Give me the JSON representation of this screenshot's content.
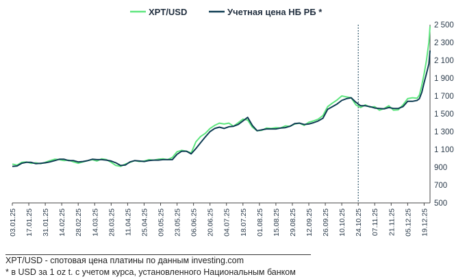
{
  "chart_data": {
    "type": "line",
    "legend": [
      "XPT/USD",
      "Учетная цена НБ РБ *"
    ],
    "legend_position": "top-center",
    "ylim": [
      500,
      2500
    ],
    "yticks": [
      500,
      700,
      900,
      1100,
      1300,
      1500,
      1700,
      1900,
      2100,
      2300,
      2500
    ],
    "ytick_labels": [
      "500",
      "700",
      "900",
      "1 100",
      "1 300",
      "1 500",
      "1 700",
      "1 900",
      "2 100",
      "2 300",
      "2 500"
    ],
    "xlim_days": [
      0,
      355
    ],
    "xticks": [
      {
        "label": "03.01.25",
        "day": 0
      },
      {
        "label": "17.01.25",
        "day": 14
      },
      {
        "label": "31.01.25",
        "day": 28
      },
      {
        "label": "14.02.25",
        "day": 42
      },
      {
        "label": "28.02.25",
        "day": 56
      },
      {
        "label": "14.03.25",
        "day": 70
      },
      {
        "label": "28.03.25",
        "day": 84
      },
      {
        "label": "11.04.25",
        "day": 98
      },
      {
        "label": "25.04.25",
        "day": 112
      },
      {
        "label": "09.05.25",
        "day": 126
      },
      {
        "label": "23.05.25",
        "day": 140
      },
      {
        "label": "06.06.25",
        "day": 154
      },
      {
        "label": "20.06.25",
        "day": 168
      },
      {
        "label": "04.07.25",
        "day": 182
      },
      {
        "label": "18.07.25",
        "day": 196
      },
      {
        "label": "01.08.25",
        "day": 210
      },
      {
        "label": "15.08.25",
        "day": 224
      },
      {
        "label": "29.08.25",
        "day": 238
      },
      {
        "label": "12.09.25",
        "day": 252
      },
      {
        "label": "26.09.25",
        "day": 266
      },
      {
        "label": "10.10.25",
        "day": 280
      },
      {
        "label": "24.10.25",
        "day": 294
      },
      {
        "label": "07.11.25",
        "day": 308
      },
      {
        "label": "21.11.25",
        "day": 322
      },
      {
        "label": "05.12.25",
        "day": 336
      },
      {
        "label": "19.12.25",
        "day": 350
      }
    ],
    "vline_day": 294,
    "series": [
      {
        "name": "XPT/USD",
        "color": "#5de67e",
        "x": [
          0,
          4,
          8,
          12,
          16,
          20,
          24,
          28,
          32,
          36,
          40,
          44,
          48,
          52,
          56,
          60,
          64,
          68,
          72,
          76,
          80,
          84,
          88,
          92,
          96,
          100,
          104,
          108,
          112,
          116,
          120,
          124,
          128,
          132,
          136,
          140,
          144,
          148,
          152,
          156,
          160,
          164,
          168,
          172,
          176,
          180,
          184,
          188,
          192,
          196,
          200,
          204,
          208,
          212,
          216,
          220,
          224,
          228,
          232,
          236,
          240,
          244,
          248,
          252,
          256,
          260,
          264,
          268,
          272,
          276,
          280,
          284,
          288,
          292,
          296,
          300,
          304,
          308,
          312,
          316,
          320,
          324,
          328,
          332,
          336,
          340,
          344,
          346,
          348,
          350,
          352,
          354,
          355
        ],
        "y": [
          935,
          925,
          955,
          960,
          945,
          950,
          940,
          955,
          975,
          990,
          985,
          975,
          980,
          960,
          945,
          960,
          975,
          985,
          970,
          995,
          985,
          955,
          920,
          910,
          935,
          955,
          975,
          965,
          970,
          985,
          980,
          990,
          995,
          985,
          1010,
          1075,
          1090,
          1080,
          1060,
          1185,
          1245,
          1280,
          1335,
          1370,
          1395,
          1385,
          1395,
          1360,
          1400,
          1440,
          1430,
          1350,
          1310,
          1315,
          1340,
          1335,
          1345,
          1340,
          1365,
          1360,
          1385,
          1395,
          1370,
          1405,
          1420,
          1440,
          1480,
          1580,
          1620,
          1655,
          1700,
          1690,
          1680,
          1600,
          1570,
          1600,
          1575,
          1580,
          1540,
          1560,
          1590,
          1540,
          1545,
          1600,
          1670,
          1680,
          1675,
          1710,
          1820,
          1950,
          2100,
          2300,
          2480
        ]
      },
      {
        "name": "Учетная цена НБ РБ *",
        "color": "#0d3b52",
        "x": [
          0,
          4,
          8,
          12,
          16,
          20,
          24,
          28,
          32,
          36,
          40,
          44,
          48,
          52,
          56,
          60,
          64,
          68,
          72,
          76,
          80,
          84,
          88,
          92,
          96,
          100,
          104,
          108,
          112,
          116,
          120,
          124,
          128,
          132,
          136,
          140,
          144,
          148,
          152,
          156,
          160,
          164,
          168,
          172,
          176,
          180,
          184,
          188,
          192,
          196,
          200,
          204,
          208,
          212,
          216,
          220,
          224,
          228,
          232,
          236,
          240,
          244,
          248,
          252,
          256,
          260,
          264,
          268,
          272,
          276,
          280,
          284,
          288,
          292,
          296,
          300,
          304,
          308,
          312,
          316,
          320,
          324,
          328,
          332,
          336,
          340,
          344,
          346,
          348,
          350,
          352,
          354,
          355
        ],
        "y": [
          910,
          915,
          945,
          955,
          955,
          940,
          945,
          950,
          960,
          975,
          990,
          990,
          975,
          975,
          960,
          965,
          975,
          990,
          985,
          985,
          980,
          970,
          950,
          920,
          925,
          960,
          975,
          970,
          965,
          975,
          980,
          980,
          985,
          985,
          985,
          1045,
          1080,
          1080,
          1050,
          1110,
          1175,
          1240,
          1300,
          1335,
          1350,
          1335,
          1355,
          1360,
          1380,
          1420,
          1460,
          1370,
          1310,
          1320,
          1330,
          1330,
          1330,
          1340,
          1345,
          1360,
          1390,
          1395,
          1380,
          1385,
          1400,
          1420,
          1450,
          1550,
          1580,
          1610,
          1650,
          1670,
          1680,
          1630,
          1590,
          1590,
          1580,
          1565,
          1560,
          1555,
          1570,
          1560,
          1560,
          1580,
          1640,
          1640,
          1650,
          1670,
          1740,
          1850,
          1950,
          2060,
          2210
        ]
      }
    ]
  },
  "footnotes": {
    "line1": "XPT/USD - спотовая цена платины по данным investing.com",
    "line2": "* в USD  за 1 oz t. с учетом курса, установленного Национальным банком"
  }
}
